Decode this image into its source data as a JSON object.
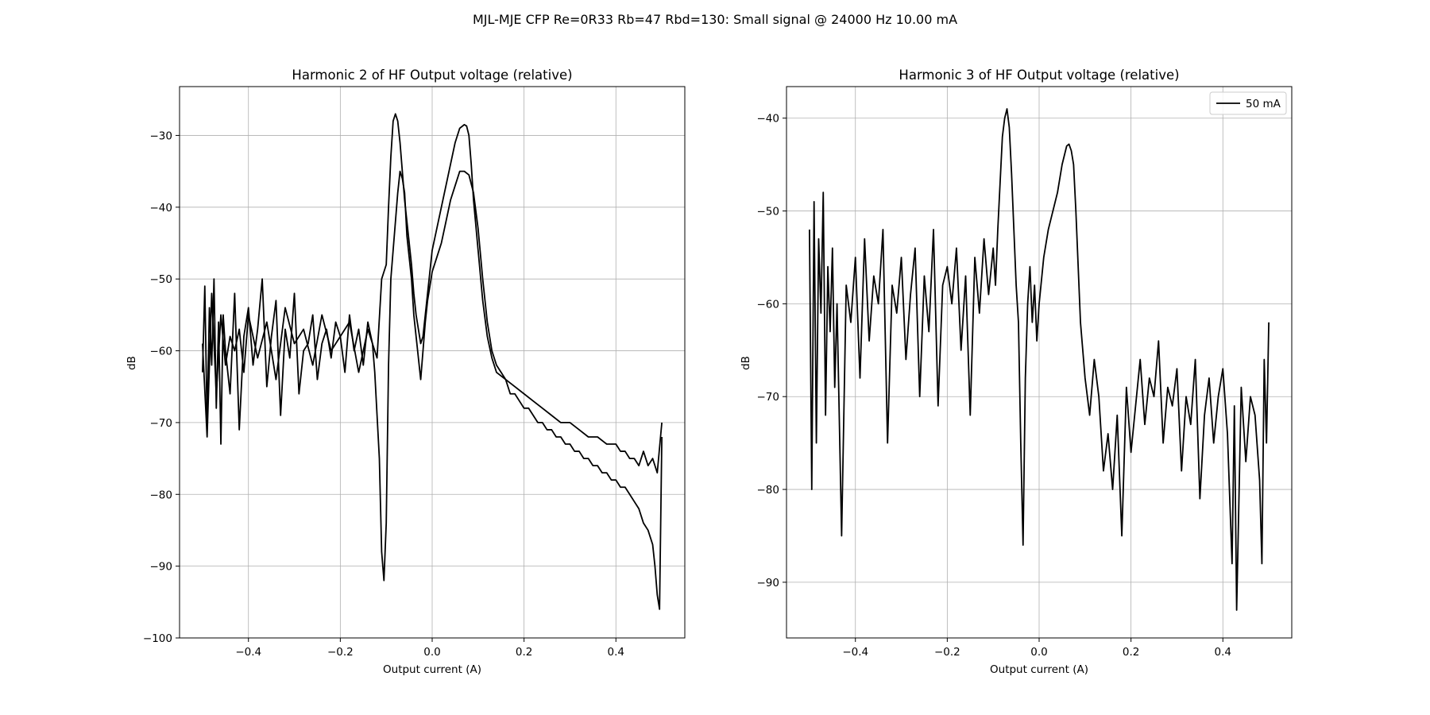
{
  "figure_title": "MJL-MJE CFP Re=0R33 Rb=47 Rbd=130: Small signal @ 24000 Hz 10.00 mA",
  "chart_data": [
    {
      "type": "line",
      "title": "Harmonic 2 of HF Output voltage (relative)",
      "xlabel": "Output current (A)",
      "ylabel": "dB",
      "xlim": [
        -0.55,
        0.55
      ],
      "ylim": [
        -100,
        -23.2
      ],
      "xticks": [
        -0.4,
        -0.2,
        0.0,
        0.2,
        0.4
      ],
      "xtick_labels": [
        "−0.4",
        "−0.2",
        "0.0",
        "0.2",
        "0.4"
      ],
      "yticks": [
        -100,
        -90,
        -80,
        -70,
        -60,
        -50,
        -40,
        -30
      ],
      "ytick_labels": [
        "−100",
        "−90",
        "−80",
        "−70",
        "−60",
        "−50",
        "−40",
        "−30"
      ],
      "grid": true,
      "series": [
        {
          "color": "#000000",
          "x": [
            -0.5,
            -0.49,
            -0.48,
            -0.47,
            -0.46,
            -0.45,
            -0.44,
            -0.43,
            -0.42,
            -0.41,
            -0.4,
            -0.38,
            -0.36,
            -0.34,
            -0.32,
            -0.3,
            -0.28,
            -0.26,
            -0.24,
            -0.22,
            -0.2,
            -0.18,
            -0.16,
            -0.14,
            -0.13,
            -0.12,
            -0.11,
            -0.105,
            -0.1,
            -0.095,
            -0.09,
            -0.085,
            -0.08,
            -0.075,
            -0.07,
            -0.065,
            -0.06,
            -0.055,
            -0.05,
            -0.045,
            -0.04,
            -0.035,
            -0.03,
            -0.025,
            -0.02,
            -0.015,
            -0.01,
            -0.005,
            0.0,
            0.01,
            0.02,
            0.03,
            0.04,
            0.05,
            0.06,
            0.07,
            0.075,
            0.08,
            0.085,
            0.09,
            0.1,
            0.11,
            0.12,
            0.13,
            0.14,
            0.16,
            0.18,
            0.2,
            0.22,
            0.24,
            0.26,
            0.28,
            0.3,
            0.32,
            0.34,
            0.36,
            0.38,
            0.4,
            0.41,
            0.42,
            0.43,
            0.44,
            0.45,
            0.46,
            0.47,
            0.48,
            0.49,
            0.5
          ],
          "y": [
            -59,
            -72,
            -52,
            -66,
            -55,
            -62,
            -58,
            -60,
            -57,
            -63,
            -55,
            -61,
            -56,
            -64,
            -54,
            -59,
            -57,
            -62,
            -55,
            -60,
            -58,
            -56,
            -63,
            -57,
            -59,
            -61,
            -50,
            -49,
            -48,
            -40,
            -33,
            -28,
            -27,
            -28,
            -31,
            -35,
            -39,
            -42,
            -45,
            -48,
            -52,
            -55,
            -57,
            -59,
            -58,
            -55,
            -52,
            -49,
            -46,
            -43,
            -40,
            -37,
            -34,
            -31,
            -29,
            -28.5,
            -28.7,
            -30,
            -34,
            -39,
            -46,
            -53,
            -58,
            -61,
            -63,
            -64,
            -65,
            -66,
            -67,
            -68,
            -69,
            -70,
            -70,
            -71,
            -72,
            -72,
            -73,
            -73,
            -74,
            -74,
            -75,
            -75,
            -76,
            -74,
            -76,
            -75,
            -77,
            -70
          ]
        },
        {
          "color": "#000000",
          "x": [
            -0.5,
            -0.495,
            -0.49,
            -0.485,
            -0.48,
            -0.475,
            -0.47,
            -0.465,
            -0.46,
            -0.455,
            -0.45,
            -0.44,
            -0.43,
            -0.42,
            -0.41,
            -0.4,
            -0.39,
            -0.38,
            -0.37,
            -0.36,
            -0.35,
            -0.34,
            -0.33,
            -0.32,
            -0.31,
            -0.3,
            -0.29,
            -0.28,
            -0.27,
            -0.26,
            -0.25,
            -0.24,
            -0.23,
            -0.22,
            -0.21,
            -0.2,
            -0.19,
            -0.18,
            -0.17,
            -0.16,
            -0.15,
            -0.14,
            -0.13,
            -0.125,
            -0.12,
            -0.115,
            -0.11,
            -0.105,
            -0.1,
            -0.095,
            -0.09,
            -0.085,
            -0.08,
            -0.075,
            -0.07,
            -0.065,
            -0.06,
            -0.055,
            -0.05,
            -0.045,
            -0.04,
            -0.035,
            -0.03,
            -0.025,
            -0.02,
            -0.015,
            -0.01,
            -0.005,
            0.0,
            0.01,
            0.02,
            0.03,
            0.04,
            0.05,
            0.06,
            0.07,
            0.08,
            0.09,
            0.1,
            0.11,
            0.12,
            0.13,
            0.14,
            0.15,
            0.16,
            0.17,
            0.18,
            0.19,
            0.2,
            0.21,
            0.22,
            0.23,
            0.24,
            0.25,
            0.26,
            0.27,
            0.28,
            0.29,
            0.3,
            0.31,
            0.32,
            0.33,
            0.34,
            0.35,
            0.36,
            0.37,
            0.38,
            0.39,
            0.4,
            0.41,
            0.42,
            0.43,
            0.44,
            0.45,
            0.46,
            0.47,
            0.48,
            0.485,
            0.49,
            0.495,
            0.5
          ],
          "y": [
            -63,
            -51,
            -70,
            -54,
            -62,
            -50,
            -68,
            -56,
            -73,
            -55,
            -60,
            -66,
            -52,
            -71,
            -58,
            -54,
            -62,
            -57,
            -50,
            -65,
            -58,
            -53,
            -69,
            -57,
            -61,
            -52,
            -66,
            -60,
            -59,
            -55,
            -64,
            -59,
            -57,
            -61,
            -56,
            -58,
            -63,
            -55,
            -60,
            -57,
            -62,
            -56,
            -59,
            -63,
            -69,
            -75,
            -88,
            -92,
            -84,
            -62,
            -50,
            -46,
            -42,
            -38,
            -35,
            -36,
            -38,
            -44,
            -47,
            -50,
            -55,
            -58,
            -61,
            -64,
            -60,
            -56,
            -53,
            -51,
            -49,
            -47,
            -45,
            -42,
            -39,
            -37,
            -35,
            -35,
            -35.5,
            -38,
            -43,
            -50,
            -56,
            -60,
            -62,
            -63,
            -64,
            -66,
            -66,
            -67,
            -68,
            -68,
            -69,
            -70,
            -70,
            -71,
            -71,
            -72,
            -72,
            -73,
            -73,
            -74,
            -74,
            -75,
            -75,
            -76,
            -76,
            -77,
            -77,
            -78,
            -78,
            -79,
            -79,
            -80,
            -81,
            -82,
            -84,
            -85,
            -87,
            -90,
            -94,
            -96,
            -72
          ]
        }
      ]
    },
    {
      "type": "line",
      "title": "Harmonic 3 of HF Output voltage (relative)",
      "xlabel": "Output current (A)",
      "ylabel": "dB",
      "xlim": [
        -0.55,
        0.55
      ],
      "ylim": [
        -96,
        -36.6
      ],
      "xticks": [
        -0.4,
        -0.2,
        0.0,
        0.2,
        0.4
      ],
      "xtick_labels": [
        "−0.4",
        "−0.2",
        "0.0",
        "0.2",
        "0.4"
      ],
      "yticks": [
        -90,
        -80,
        -70,
        -60,
        -50,
        -40
      ],
      "ytick_labels": [
        "−90",
        "−80",
        "−70",
        "−60",
        "−50",
        "−40"
      ],
      "grid": true,
      "legend": {
        "position": "top-right",
        "entries": [
          "50 mA"
        ]
      },
      "series": [
        {
          "name": "50 mA",
          "color": "#000000",
          "x": [
            -0.5,
            -0.495,
            -0.49,
            -0.485,
            -0.48,
            -0.475,
            -0.47,
            -0.465,
            -0.46,
            -0.455,
            -0.45,
            -0.445,
            -0.44,
            -0.43,
            -0.42,
            -0.41,
            -0.4,
            -0.39,
            -0.38,
            -0.37,
            -0.36,
            -0.35,
            -0.34,
            -0.33,
            -0.32,
            -0.31,
            -0.3,
            -0.29,
            -0.28,
            -0.27,
            -0.26,
            -0.25,
            -0.24,
            -0.23,
            -0.22,
            -0.21,
            -0.2,
            -0.19,
            -0.18,
            -0.17,
            -0.16,
            -0.15,
            -0.14,
            -0.13,
            -0.12,
            -0.11,
            -0.1,
            -0.095,
            -0.09,
            -0.085,
            -0.08,
            -0.075,
            -0.07,
            -0.065,
            -0.06,
            -0.055,
            -0.05,
            -0.045,
            -0.04,
            -0.035,
            -0.03,
            -0.025,
            -0.02,
            -0.015,
            -0.01,
            -0.005,
            0.0,
            0.01,
            0.02,
            0.03,
            0.04,
            0.05,
            0.06,
            0.065,
            0.07,
            0.075,
            0.08,
            0.085,
            0.09,
            0.1,
            0.11,
            0.12,
            0.13,
            0.14,
            0.15,
            0.16,
            0.17,
            0.18,
            0.19,
            0.2,
            0.21,
            0.22,
            0.23,
            0.24,
            0.25,
            0.26,
            0.27,
            0.28,
            0.29,
            0.3,
            0.31,
            0.32,
            0.33,
            0.34,
            0.35,
            0.36,
            0.37,
            0.38,
            0.39,
            0.4,
            0.41,
            0.42,
            0.425,
            0.43,
            0.44,
            0.45,
            0.46,
            0.47,
            0.48,
            0.485,
            0.49,
            0.495,
            0.5
          ],
          "y": [
            -52,
            -80,
            -49,
            -75,
            -53,
            -61,
            -48,
            -72,
            -56,
            -63,
            -54,
            -69,
            -60,
            -85,
            -58,
            -62,
            -55,
            -68,
            -53,
            -64,
            -57,
            -60,
            -52,
            -75,
            -58,
            -61,
            -55,
            -66,
            -59,
            -54,
            -70,
            -57,
            -63,
            -52,
            -71,
            -58,
            -56,
            -60,
            -54,
            -65,
            -57,
            -72,
            -55,
            -61,
            -53,
            -59,
            -54,
            -58,
            -52,
            -47,
            -42,
            -40,
            -39,
            -41,
            -46,
            -52,
            -58,
            -62,
            -75,
            -86,
            -68,
            -60,
            -56,
            -62,
            -58,
            -64,
            -60,
            -55,
            -52,
            -50,
            -48,
            -45,
            -43,
            -42.8,
            -43.5,
            -45,
            -50,
            -56,
            -62,
            -68,
            -72,
            -66,
            -70,
            -78,
            -74,
            -80,
            -72,
            -85,
            -69,
            -76,
            -71,
            -66,
            -73,
            -68,
            -70,
            -64,
            -75,
            -69,
            -71,
            -67,
            -78,
            -70,
            -73,
            -66,
            -81,
            -72,
            -68,
            -75,
            -70,
            -67,
            -74,
            -88,
            -71,
            -93,
            -69,
            -77,
            -70,
            -72,
            -79,
            -88,
            -66,
            -75,
            -62
          ]
        }
      ]
    }
  ]
}
